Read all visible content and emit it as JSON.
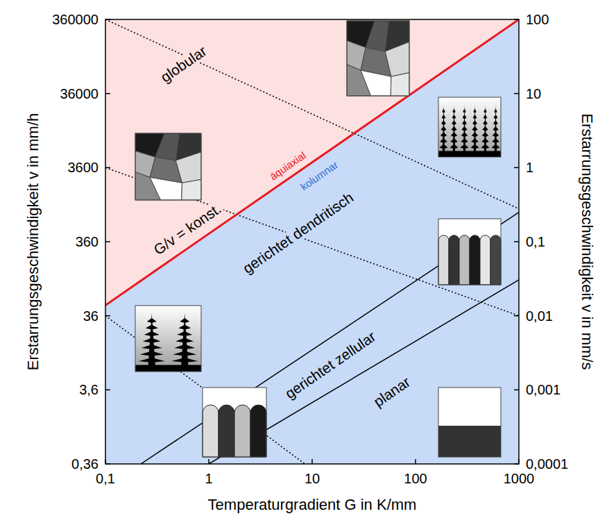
{
  "chart_data": {
    "type": "line",
    "log": true,
    "grid": false,
    "xlabel": "Temperaturgradient G in K/mm",
    "ylabel": "Erstarrungsgeschwindigkeit v  in mm/h",
    "y2label": "Erstarrungsgeschwindigkeit v  in mm/s",
    "xlim": [
      0.1,
      1000
    ],
    "xticks": [
      {
        "value": 0.1,
        "label": "0,1"
      },
      1,
      10,
      100,
      1000
    ],
    "ylim": [
      0.36,
      360000
    ],
    "yticks": [
      {
        "value": 0.36,
        "label": "0,36"
      },
      {
        "value": 3.6,
        "label": "3,6"
      },
      36,
      360,
      3600,
      36000,
      360000
    ],
    "y2lim": [
      0.0001,
      100
    ],
    "y2ticks": [
      {
        "value": 0.0001,
        "label": "0,0001"
      },
      {
        "value": 0.001,
        "label": "0,001"
      },
      {
        "value": 0.01,
        "label": "0,01"
      },
      {
        "value": 0.1,
        "label": "0,1"
      },
      1,
      10,
      100
    ],
    "series": [
      {
        "color": "#e8191f",
        "line_style": "solid",
        "x": [
          0.1,
          1000
        ],
        "values": [
          50,
          360000
        ]
      },
      {
        "color": "#000000",
        "line_style": "solid",
        "x": [
          0.22,
          1000
        ],
        "values": [
          0.36,
          900
        ]
      },
      {
        "color": "#000000",
        "line_style": "solid",
        "x": [
          1.0,
          1000
        ],
        "values": [
          0.36,
          110
        ]
      },
      {
        "color": "#000000",
        "line_style": "dotted",
        "x": [
          0.1,
          1000
        ],
        "values": [
          360000,
          1000
        ]
      },
      {
        "color": "#000000",
        "line_style": "dotted",
        "x": [
          0.1,
          1000
        ],
        "values": [
          3600,
          36
        ]
      },
      {
        "color": "#000000",
        "line_style": "dotted",
        "x": [
          0.1,
          8.5
        ],
        "values": [
          36,
          0.36
        ]
      }
    ],
    "annotations": [
      {
        "text": "globular",
        "x": 0.57,
        "y": 90000,
        "color": "#000000"
      },
      {
        "text": "G/v = konst.",
        "x": 0.62,
        "y": 532,
        "color": "#000000"
      },
      {
        "text": "äquiaxial",
        "x": 5.8,
        "y": 3800,
        "color": "#e8191f"
      },
      {
        "text": "kolumnar",
        "x": 11.7,
        "y": 2800,
        "color": "#2e6fd0"
      },
      {
        "text": "gerichtet dendritisch",
        "x": 7.3,
        "y": 474,
        "color": "#000000"
      },
      {
        "text": "gerichtet zellular",
        "x": 15,
        "y": 7.8,
        "color": "#000000"
      },
      {
        "text": "planar",
        "x": 59,
        "y": 3.4,
        "color": "#000000"
      }
    ]
  }
}
